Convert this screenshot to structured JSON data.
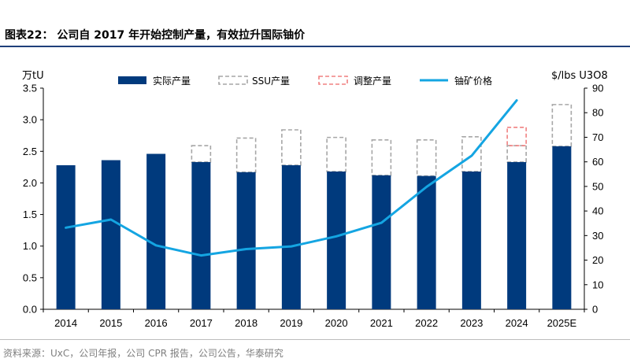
{
  "figure": {
    "title": "图表22： 公司自 2017 年开始控制产量，有效拉升国际铀价",
    "source": "资料来源：UxC，公司年报，公司 CPR 报告，公司公告，华泰研究"
  },
  "chart_data": {
    "type": "bar",
    "categories": [
      "2014",
      "2015",
      "2016",
      "2017",
      "2018",
      "2019",
      "2020",
      "2021",
      "2022",
      "2023",
      "2024",
      "2025E"
    ],
    "left_axis": {
      "unit": "万tU",
      "ylim": [
        0,
        3.5
      ],
      "ticks": [
        "0.0",
        "0.5",
        "1.0",
        "1.5",
        "2.0",
        "2.5",
        "3.0",
        "3.5"
      ],
      "tick_values": [
        0,
        0.5,
        1,
        1.5,
        2,
        2.5,
        3,
        3.5
      ]
    },
    "right_axis": {
      "unit": "$/lbs U3O8",
      "ylim": [
        0,
        90
      ],
      "ticks": [
        "0",
        "10",
        "20",
        "30",
        "40",
        "50",
        "60",
        "70",
        "80",
        "90"
      ],
      "tick_values": [
        0,
        10,
        20,
        30,
        40,
        50,
        60,
        70,
        80,
        90
      ]
    },
    "series": [
      {
        "name": "实际产量",
        "kind": "bar",
        "axis": "left",
        "color": "#003a7d",
        "values": [
          2.28,
          2.36,
          2.46,
          2.33,
          2.17,
          2.28,
          2.18,
          2.12,
          2.11,
          2.18,
          2.33,
          2.58
        ]
      },
      {
        "name": "SSU产量",
        "kind": "bar-dashed-outline",
        "axis": "left",
        "color": "#a6a6a6",
        "values": [
          null,
          null,
          null,
          2.59,
          2.71,
          2.84,
          2.72,
          2.68,
          2.68,
          2.73,
          2.59,
          3.24
        ]
      },
      {
        "name": "调整产量",
        "kind": "bar-dashed-outline",
        "axis": "left",
        "color": "#f08080",
        "values": [
          null,
          null,
          null,
          null,
          null,
          null,
          null,
          null,
          null,
          null,
          2.88,
          null
        ]
      },
      {
        "name": "铀矿价格",
        "kind": "line",
        "axis": "right",
        "color": "#14a5e2",
        "values": [
          33.2,
          36.5,
          26.0,
          21.9,
          24.5,
          25.6,
          29.7,
          35.2,
          49.8,
          62.5,
          85.0,
          null
        ]
      }
    ],
    "legend_position": "top",
    "grid": false
  }
}
